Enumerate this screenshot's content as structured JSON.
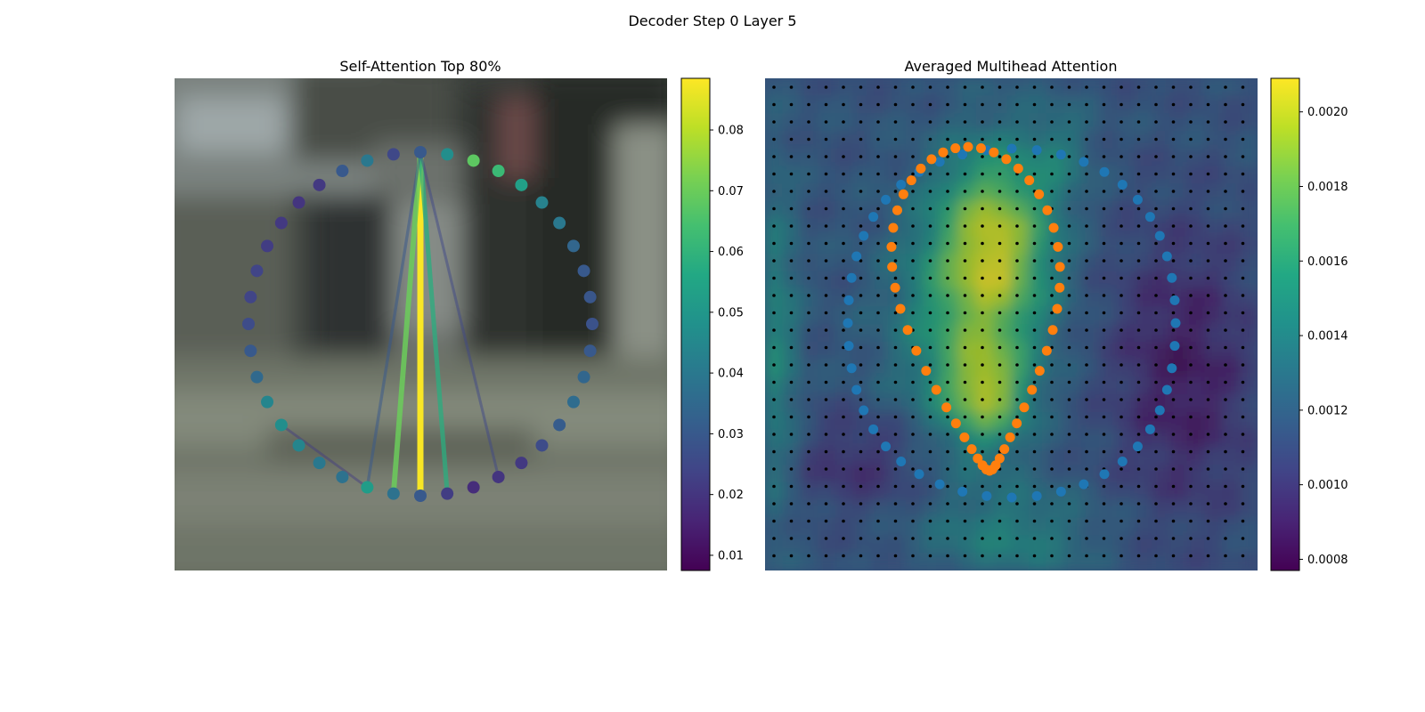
{
  "figure": {
    "title": "Decoder Step 0 Layer 5"
  },
  "chart_data": [
    {
      "type": "scatter",
      "title": "Self-Attention Top 80%",
      "xlabel": "",
      "ylabel": "",
      "grid": false,
      "background": "blurred street photo",
      "colormap": "viridis",
      "colorbar": {
        "range": [
          0.0075,
          0.0885
        ],
        "ticks": [
          0.01,
          0.02,
          0.03,
          0.04,
          0.05,
          0.06,
          0.07,
          0.08
        ],
        "tick_labels": [
          "0.01",
          "0.02",
          "0.03",
          "0.04",
          "0.05",
          "0.06",
          "0.07",
          "0.08"
        ]
      },
      "points_polar_note": "ring of 40 query points, listed clockwise from top",
      "points": [
        {
          "angle": 0,
          "value": 0.03
        },
        {
          "angle": 9,
          "value": 0.047
        },
        {
          "angle": 18,
          "value": 0.068
        },
        {
          "angle": 27,
          "value": 0.062
        },
        {
          "angle": 36,
          "value": 0.053
        },
        {
          "angle": 45,
          "value": 0.043
        },
        {
          "angle": 54,
          "value": 0.04
        },
        {
          "angle": 63,
          "value": 0.034
        },
        {
          "angle": 72,
          "value": 0.03
        },
        {
          "angle": 81,
          "value": 0.029
        },
        {
          "angle": 90,
          "value": 0.028
        },
        {
          "angle": 99,
          "value": 0.03
        },
        {
          "angle": 108,
          "value": 0.034
        },
        {
          "angle": 117,
          "value": 0.036
        },
        {
          "angle": 126,
          "value": 0.031
        },
        {
          "angle": 135,
          "value": 0.026
        },
        {
          "angle": 144,
          "value": 0.021
        },
        {
          "angle": 153,
          "value": 0.02
        },
        {
          "angle": 162,
          "value": 0.018
        },
        {
          "angle": 171,
          "value": 0.022
        },
        {
          "angle": 180,
          "value": 0.03
        },
        {
          "angle": 189,
          "value": 0.038
        },
        {
          "angle": 198,
          "value": 0.052
        },
        {
          "angle": 207,
          "value": 0.038
        },
        {
          "angle": 216,
          "value": 0.04
        },
        {
          "angle": 225,
          "value": 0.044
        },
        {
          "angle": 234,
          "value": 0.047
        },
        {
          "angle": 243,
          "value": 0.044
        },
        {
          "angle": 252,
          "value": 0.035
        },
        {
          "angle": 261,
          "value": 0.03
        },
        {
          "angle": 270,
          "value": 0.026
        },
        {
          "angle": 279,
          "value": 0.024
        },
        {
          "angle": 288,
          "value": 0.024
        },
        {
          "angle": 297,
          "value": 0.022
        },
        {
          "angle": 306,
          "value": 0.021
        },
        {
          "angle": 315,
          "value": 0.02
        },
        {
          "angle": 324,
          "value": 0.021
        },
        {
          "angle": 333,
          "value": 0.03
        },
        {
          "angle": 342,
          "value": 0.04
        },
        {
          "angle": 351,
          "value": 0.025
        }
      ],
      "attention_links": [
        {
          "from": 0,
          "to": 20,
          "value": 0.088
        },
        {
          "from": 0,
          "to": 21,
          "value": 0.07
        },
        {
          "from": 0,
          "to": 19,
          "value": 0.058
        },
        {
          "from": 0,
          "to": 22,
          "value": 0.03
        },
        {
          "from": 0,
          "to": 17,
          "value": 0.025
        },
        {
          "from": 22,
          "to": 26,
          "value": 0.022
        }
      ]
    },
    {
      "type": "heatmap",
      "title": "Averaged Multihead Attention",
      "xlabel": "",
      "ylabel": "",
      "grid": false,
      "colormap": "viridis",
      "colorbar": {
        "range": [
          0.00077,
          0.00209
        ],
        "ticks": [
          0.0008,
          0.001,
          0.0012,
          0.0014,
          0.0016,
          0.0018,
          0.002
        ],
        "tick_labels": [
          "0.0008",
          "0.0010",
          "0.0012",
          "0.0014",
          "0.0016",
          "0.0018",
          "0.0020"
        ]
      },
      "grid_size": [
        28,
        28
      ],
      "sampling_points": "28 x 28 black dots",
      "series": [
        {
          "color": "#1f77b4",
          "marker": "circle",
          "points": "outer ring, 48 points"
        },
        {
          "color": "#ff7f0e",
          "marker": "circle",
          "points": "inner contour, 48 points"
        }
      ]
    }
  ]
}
